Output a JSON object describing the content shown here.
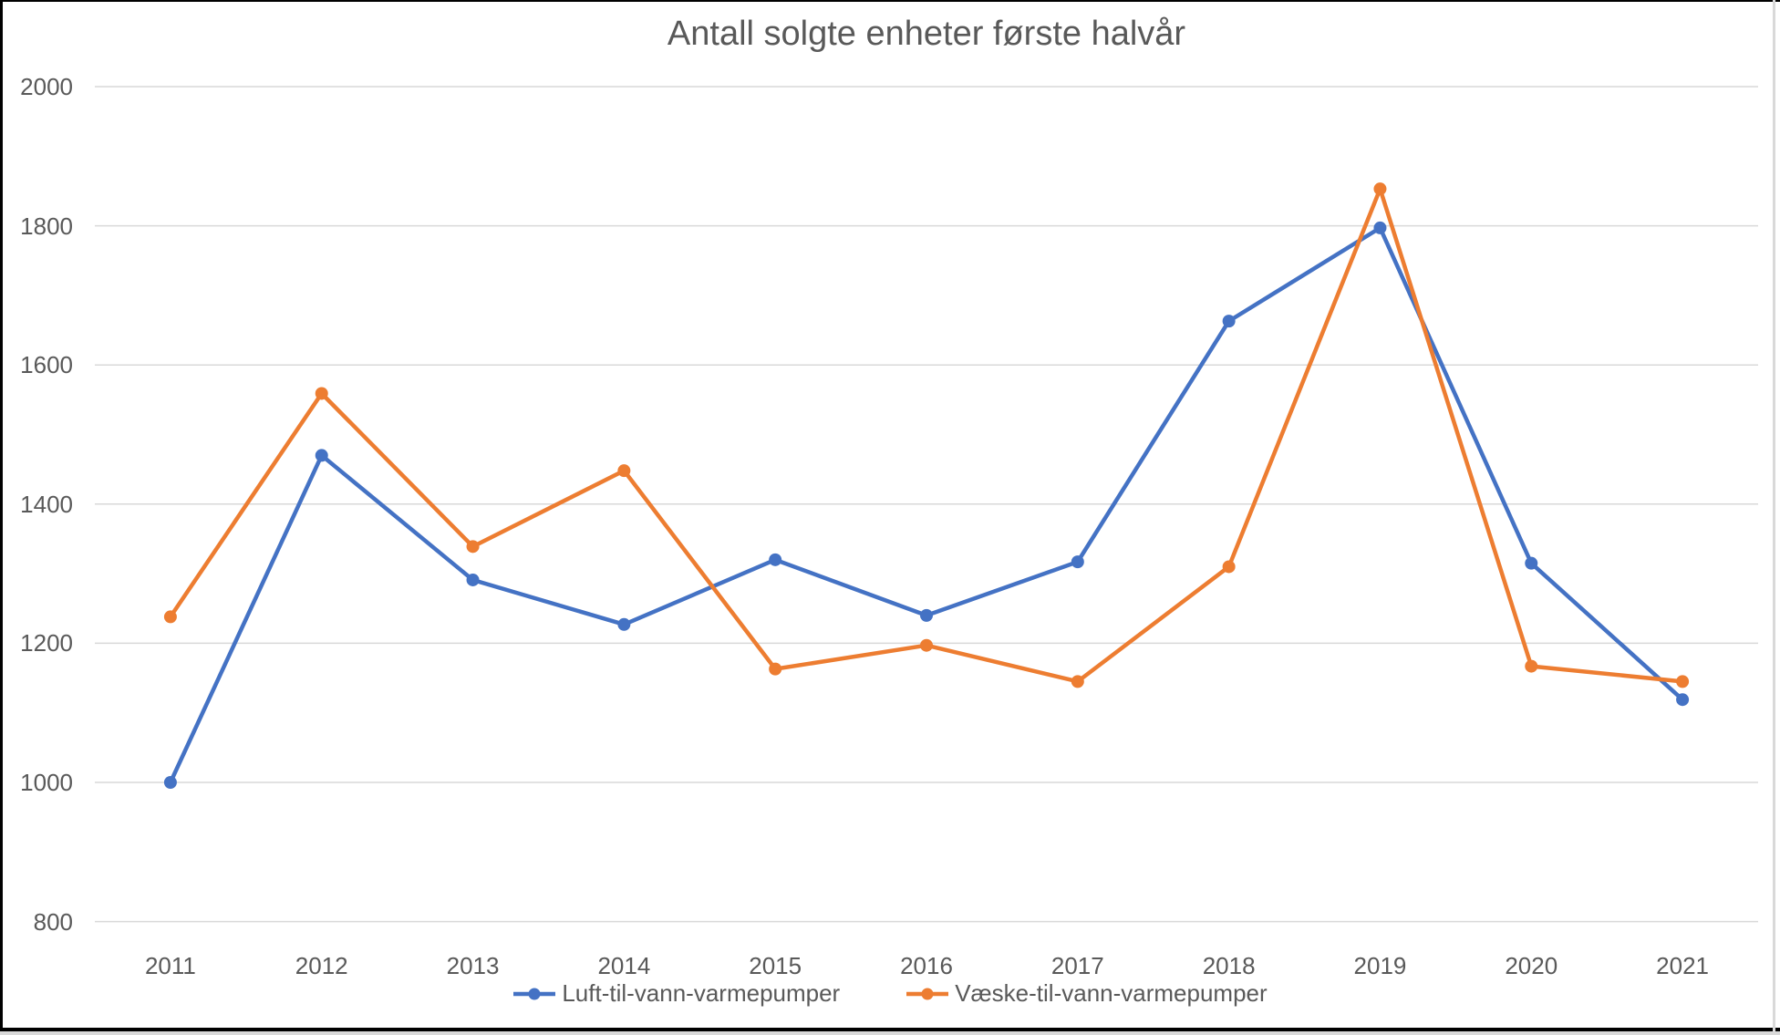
{
  "chart_data": {
    "type": "line",
    "title": "Antall solgte enheter første halvår",
    "categories": [
      "2011",
      "2012",
      "2013",
      "2014",
      "2015",
      "2016",
      "2017",
      "2018",
      "2019",
      "2020",
      "2021"
    ],
    "series": [
      {
        "name": "Luft-til-vann-varmepumper",
        "color": "#4472C4",
        "values": [
          1000,
          1470,
          1291,
          1227,
          1320,
          1240,
          1317,
          1663,
          1797,
          1315,
          1119
        ]
      },
      {
        "name": "Væske-til-vann-varmepumper",
        "color": "#ED7D31",
        "values": [
          1238,
          1559,
          1339,
          1448,
          1163,
          1197,
          1145,
          1310,
          1853,
          1167,
          1145
        ]
      }
    ],
    "xlabel": "",
    "ylabel": "",
    "ylim": [
      800,
      2000
    ],
    "yticks": [
      800,
      1000,
      1200,
      1400,
      1600,
      1800,
      2000
    ],
    "grid": true,
    "legend_position": "bottom"
  },
  "style": {
    "text_color": "#595959",
    "gridline_color": "#D9D9D9",
    "background_color": "#ffffff",
    "edge_black": "#000000",
    "edge_gray": "#d9d9d9"
  }
}
